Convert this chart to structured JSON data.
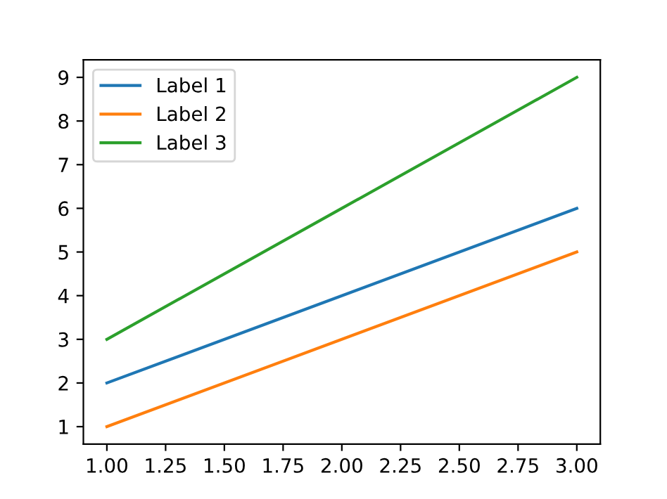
{
  "chart_data": {
    "type": "line",
    "x": [
      1,
      2,
      3
    ],
    "series": [
      {
        "name": "Label 1",
        "color": "#1f77b4",
        "values": [
          2,
          4,
          6
        ]
      },
      {
        "name": "Label 2",
        "color": "#ff7f0e",
        "values": [
          1,
          3,
          5
        ]
      },
      {
        "name": "Label 3",
        "color": "#2ca02c",
        "values": [
          3,
          6,
          9
        ]
      }
    ],
    "xlim": [
      0.9,
      3.1
    ],
    "ylim": [
      0.6,
      9.4
    ],
    "xticks": [
      {
        "value": 1,
        "label": "1.00"
      },
      {
        "value": 1.25,
        "label": "1.25"
      },
      {
        "value": 1.5,
        "label": "1.50"
      },
      {
        "value": 1.75,
        "label": "1.75"
      },
      {
        "value": 2,
        "label": "2.00"
      },
      {
        "value": 2.25,
        "label": "2.25"
      },
      {
        "value": 2.5,
        "label": "2.50"
      },
      {
        "value": 2.75,
        "label": "2.75"
      },
      {
        "value": 3,
        "label": "3.00"
      }
    ],
    "yticks": [
      1,
      2,
      3,
      4,
      5,
      6,
      7,
      8,
      9
    ],
    "grid": false,
    "legend": "top left",
    "marker": "none",
    "line_style": "solid"
  }
}
